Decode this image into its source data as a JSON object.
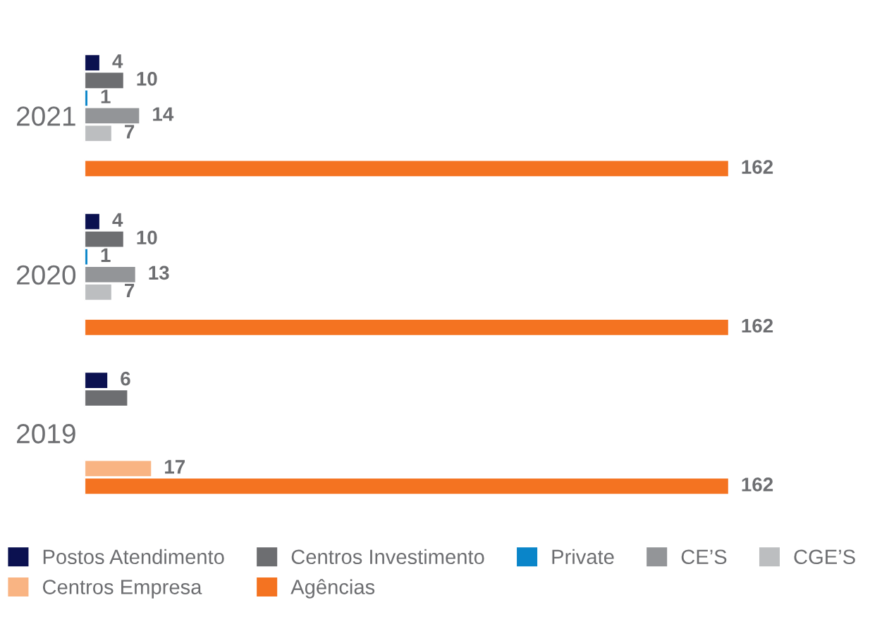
{
  "chart_data": {
    "type": "bar",
    "orientation": "horizontal",
    "categories": [
      "2021",
      "2020",
      "2019"
    ],
    "series": [
      {
        "name": "Postos Atendimento",
        "color": "#0b1150",
        "values": [
          4,
          4,
          6
        ],
        "value_labels": [
          "4",
          "4",
          "6"
        ]
      },
      {
        "name": "Centros Investimento",
        "color": "#6d6e71",
        "values": [
          10,
          10,
          11
        ],
        "value_labels": [
          "10",
          "10",
          null
        ]
      },
      {
        "name": "Private",
        "color": "#0a85c9",
        "values": [
          1,
          1,
          null
        ],
        "value_labels": [
          "1",
          "1",
          null
        ]
      },
      {
        "name": "CE’S",
        "color": "#939598",
        "values": [
          14,
          13,
          null
        ],
        "value_labels": [
          "14",
          "13",
          null
        ]
      },
      {
        "name": "CGE’S",
        "color": "#bcbec0",
        "values": [
          7,
          7,
          null
        ],
        "value_labels": [
          "7",
          "7",
          null
        ]
      },
      {
        "name": "Centros Empresa",
        "color": "#f9b483",
        "values": [
          null,
          null,
          17
        ],
        "value_labels": [
          null,
          null,
          "17"
        ]
      },
      {
        "name": "Agências",
        "color": "#f47321",
        "values": [
          162,
          162,
          162
        ],
        "value_labels": [
          "162",
          "162",
          "162"
        ]
      }
    ],
    "legend": "bottom",
    "grid": false
  }
}
